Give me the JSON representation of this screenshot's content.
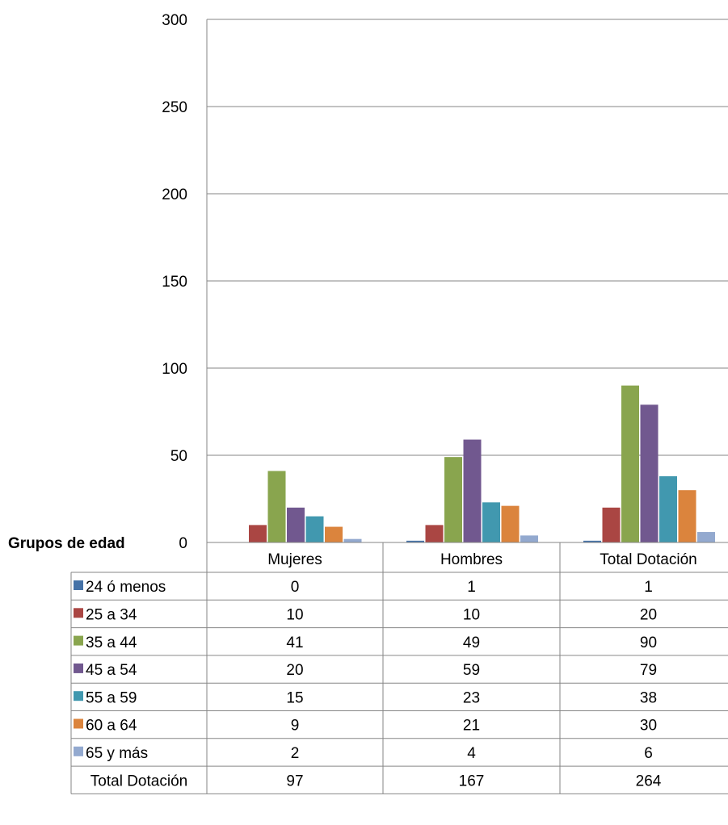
{
  "chart_data": {
    "type": "bar",
    "ylabel": "Grupos de edad",
    "ylim": [
      0,
      300
    ],
    "yticks": [
      0,
      50,
      100,
      150,
      200,
      250,
      300
    ],
    "grid": true,
    "legend": "data table",
    "categories": [
      "Mujeres",
      "Hombres",
      "Total Dotación"
    ],
    "series": [
      {
        "name": "24 ó menos",
        "color": "#4572a7",
        "values": [
          0,
          1,
          1
        ]
      },
      {
        "name": "25 a 34",
        "color": "#aa4643",
        "values": [
          10,
          10,
          20
        ]
      },
      {
        "name": "35 a 44",
        "color": "#89a54e",
        "values": [
          41,
          49,
          90
        ]
      },
      {
        "name": "45 a 54",
        "color": "#71588f",
        "values": [
          20,
          59,
          79
        ]
      },
      {
        "name": "55 a 59",
        "color": "#4198af",
        "values": [
          15,
          23,
          38
        ]
      },
      {
        "name": "60 a 64",
        "color": "#db843d",
        "values": [
          9,
          21,
          30
        ]
      },
      {
        "name": "65 y más",
        "color": "#93a9cf",
        "values": [
          2,
          4,
          6
        ]
      }
    ],
    "total_row": {
      "name": "Total Dotación",
      "values": [
        97,
        167,
        264
      ]
    }
  }
}
